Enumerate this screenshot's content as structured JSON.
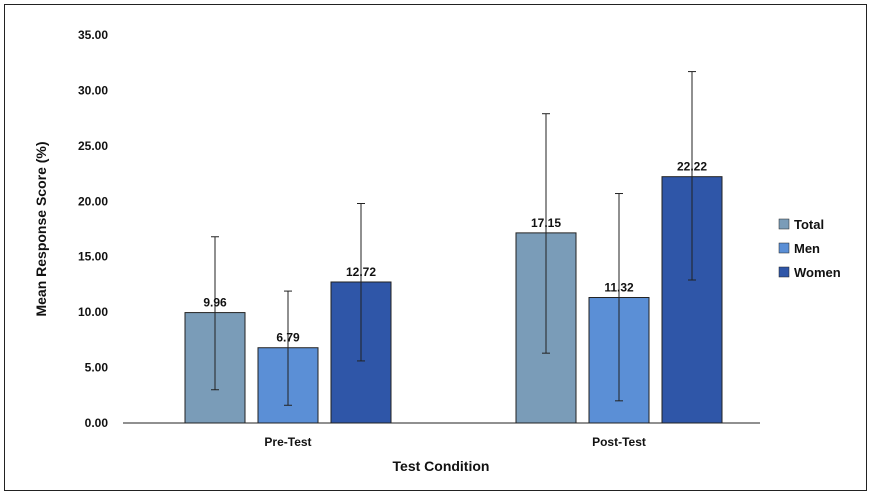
{
  "chart_data": {
    "type": "bar",
    "title": "",
    "xlabel": "Test Condition",
    "ylabel": "Mean Response Score (%)",
    "ylim": [
      0,
      35
    ],
    "yticks": [
      "0.00",
      "5.00",
      "10.00",
      "15.00",
      "20.00",
      "25.00",
      "30.00",
      "35.00"
    ],
    "categories": [
      "Pre-Test",
      "Post-Test"
    ],
    "grid": false,
    "legend_position": "right",
    "series": [
      {
        "name": "Total",
        "color": "#7a9cb8",
        "values": [
          9.96,
          17.15
        ],
        "labels": [
          "9.96",
          "17.15"
        ],
        "err_low": [
          3.0,
          6.3
        ],
        "err_high": [
          16.8,
          27.9
        ]
      },
      {
        "name": "Men",
        "color": "#5b8fd6",
        "values": [
          6.79,
          11.32
        ],
        "labels": [
          "6.79",
          "11.32"
        ],
        "err_low": [
          1.6,
          2.0
        ],
        "err_high": [
          11.9,
          20.7
        ]
      },
      {
        "name": "Women",
        "color": "#2f56a8",
        "values": [
          12.72,
          22.22
        ],
        "labels": [
          "12.72",
          "22.22"
        ],
        "err_low": [
          5.6,
          12.9
        ],
        "err_high": [
          19.8,
          31.7
        ]
      }
    ]
  }
}
